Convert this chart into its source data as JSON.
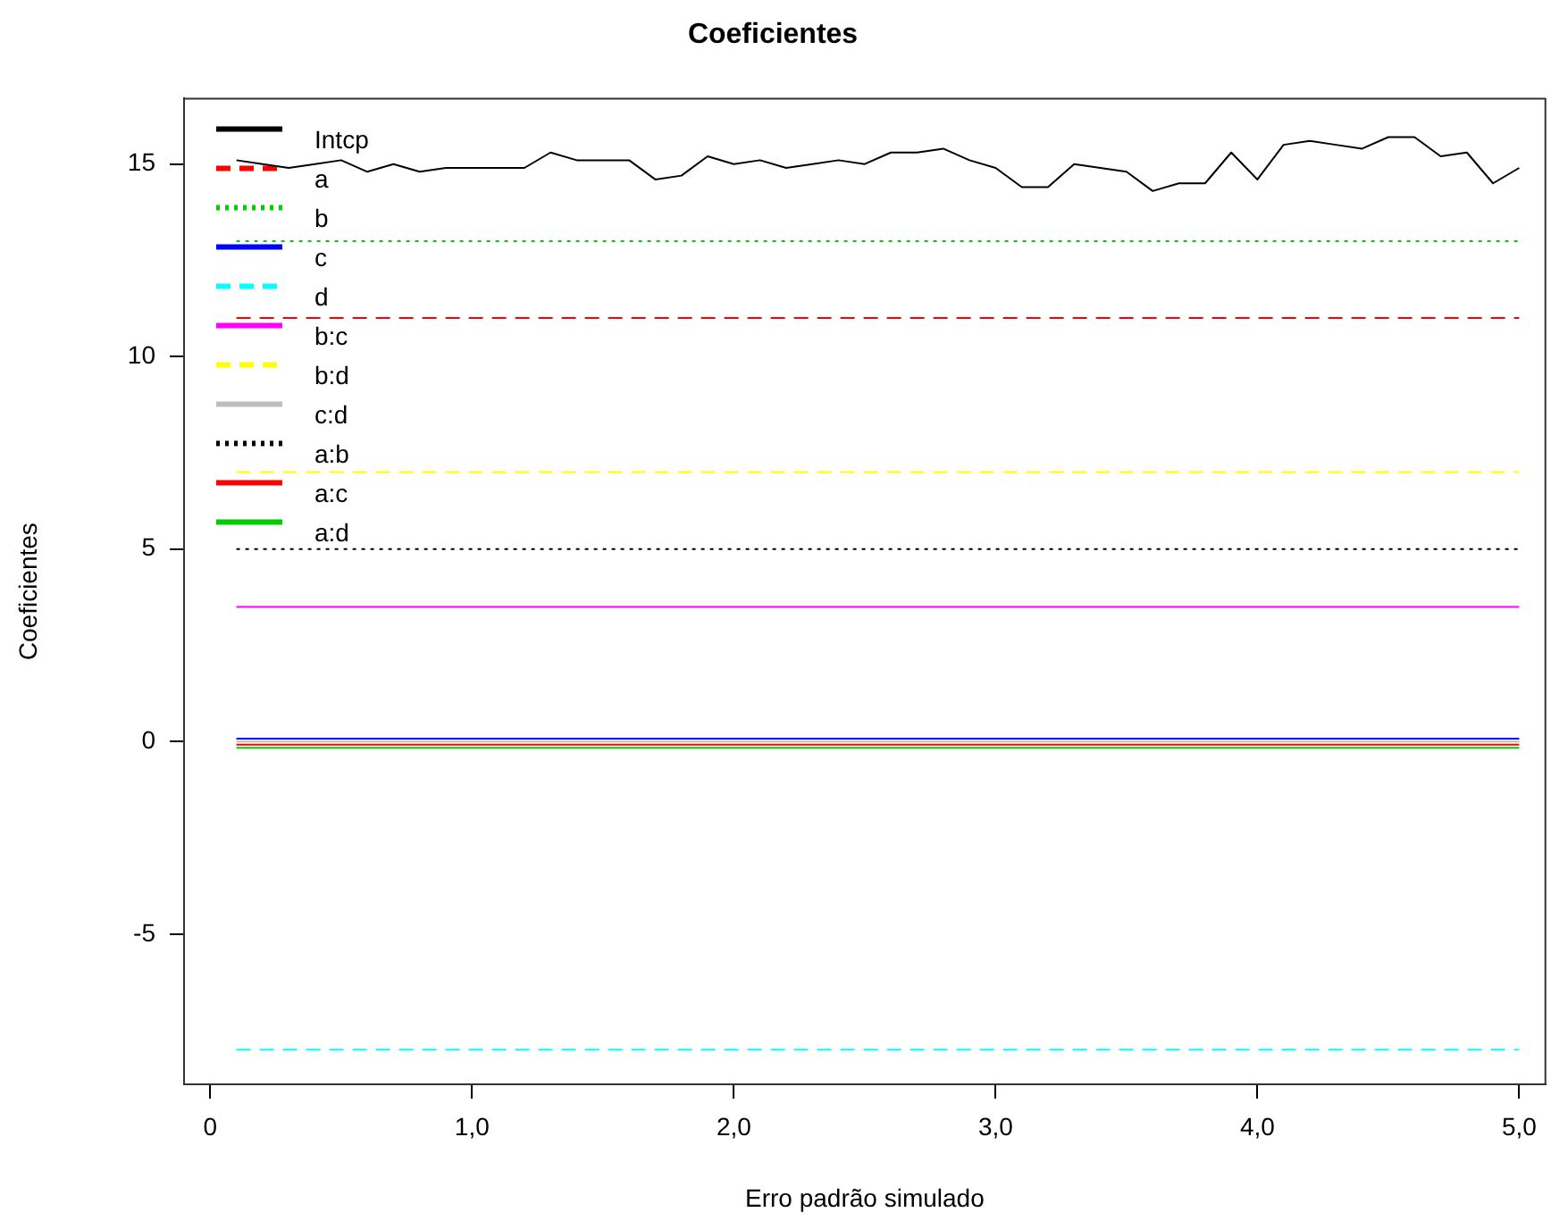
{
  "chart_data": {
    "type": "line",
    "title": "Coeficientes",
    "xlabel": "Erro padrão simulado",
    "ylabel": "Coeficientes",
    "x": [
      0.1,
      0.2,
      0.3,
      0.4,
      0.5,
      0.6,
      0.7,
      0.8,
      0.9,
      1.0,
      1.1,
      1.2,
      1.3,
      1.4,
      1.5,
      1.6,
      1.7,
      1.8,
      1.9,
      2.0,
      2.1,
      2.2,
      2.3,
      2.4,
      2.5,
      2.6,
      2.7,
      2.8,
      2.9,
      3.0,
      3.1,
      3.2,
      3.3,
      3.4,
      3.5,
      3.6,
      3.7,
      3.8,
      3.9,
      4.0,
      4.1,
      4.2,
      4.3,
      4.4,
      4.5,
      4.6,
      4.7,
      4.8,
      4.9,
      5.0
    ],
    "series": [
      {
        "name": "Intcp",
        "color": "#000000",
        "line_style": "solid",
        "values": [
          15.1,
          15.0,
          14.9,
          15.0,
          15.1,
          14.8,
          15.0,
          14.8,
          14.9,
          14.9,
          14.9,
          14.9,
          15.3,
          15.1,
          15.1,
          15.1,
          14.6,
          14.7,
          15.2,
          15.0,
          15.1,
          14.9,
          15.0,
          15.1,
          15.0,
          15.3,
          15.3,
          15.4,
          15.1,
          14.9,
          14.4,
          14.4,
          15.0,
          14.9,
          14.8,
          14.3,
          14.5,
          14.5,
          15.3,
          14.6,
          15.5,
          15.6,
          15.5,
          15.4,
          15.7,
          15.7,
          15.2,
          15.3,
          14.5,
          14.9
        ]
      },
      {
        "name": "a",
        "color": "#ff0000",
        "line_style": "dashed",
        "values": [
          11,
          11,
          11,
          11,
          11,
          11,
          11,
          11,
          11,
          11,
          11,
          11,
          11,
          11,
          11,
          11,
          11,
          11,
          11,
          11,
          11,
          11,
          11,
          11,
          11,
          11,
          11,
          11,
          11,
          11,
          11,
          11,
          11,
          11,
          11,
          11,
          11,
          11,
          11,
          11,
          11,
          11,
          11,
          11,
          11,
          11,
          11,
          11,
          11,
          11
        ]
      },
      {
        "name": "b",
        "color": "#00cd00",
        "line_style": "dotted",
        "values": [
          13,
          13,
          13,
          13,
          13,
          13,
          13,
          13,
          13,
          13,
          13,
          13,
          13,
          13,
          13,
          13,
          13,
          13,
          13,
          13,
          13,
          13,
          13,
          13,
          13,
          13,
          13,
          13,
          13,
          13,
          13,
          13,
          13,
          13,
          13,
          13,
          13,
          13,
          13,
          13,
          13,
          13,
          13,
          13,
          13,
          13,
          13,
          13,
          13,
          13
        ]
      },
      {
        "name": "c",
        "color": "#0000ff",
        "line_style": "solid",
        "values": [
          0.08,
          0.08,
          0.08,
          0.08,
          0.08,
          0.08,
          0.08,
          0.08,
          0.08,
          0.08,
          0.08,
          0.08,
          0.08,
          0.08,
          0.08,
          0.08,
          0.08,
          0.08,
          0.08,
          0.08,
          0.08,
          0.08,
          0.08,
          0.08,
          0.08,
          0.08,
          0.08,
          0.08,
          0.08,
          0.08,
          0.08,
          0.08,
          0.08,
          0.08,
          0.08,
          0.08,
          0.08,
          0.08,
          0.08,
          0.08,
          0.08,
          0.08,
          0.08,
          0.08,
          0.08,
          0.08,
          0.08,
          0.08,
          0.08,
          0.08
        ]
      },
      {
        "name": "d",
        "color": "#00ffff",
        "line_style": "dashed",
        "values": [
          -8,
          -8,
          -8,
          -8,
          -8,
          -8,
          -8,
          -8,
          -8,
          -8,
          -8,
          -8,
          -8,
          -8,
          -8,
          -8,
          -8,
          -8,
          -8,
          -8,
          -8,
          -8,
          -8,
          -8,
          -8,
          -8,
          -8,
          -8,
          -8,
          -8,
          -8,
          -8,
          -8,
          -8,
          -8,
          -8,
          -8,
          -8,
          -8,
          -8,
          -8,
          -8,
          -8,
          -8,
          -8,
          -8,
          -8,
          -8,
          -8,
          -8
        ]
      },
      {
        "name": "b:c",
        "color": "#ff00ff",
        "line_style": "solid",
        "values": [
          3.5,
          3.5,
          3.5,
          3.5,
          3.5,
          3.5,
          3.5,
          3.5,
          3.5,
          3.5,
          3.5,
          3.5,
          3.5,
          3.5,
          3.5,
          3.5,
          3.5,
          3.5,
          3.5,
          3.5,
          3.5,
          3.5,
          3.5,
          3.5,
          3.5,
          3.5,
          3.5,
          3.5,
          3.5,
          3.5,
          3.5,
          3.5,
          3.5,
          3.5,
          3.5,
          3.5,
          3.5,
          3.5,
          3.5,
          3.5,
          3.5,
          3.5,
          3.5,
          3.5,
          3.5,
          3.5,
          3.5,
          3.5,
          3.5,
          3.5
        ]
      },
      {
        "name": "b:d",
        "color": "#ffff00",
        "line_style": "dashed",
        "values": [
          7,
          7,
          7,
          7,
          7,
          7,
          7,
          7,
          7,
          7,
          7,
          7,
          7,
          7,
          7,
          7,
          7,
          7,
          7,
          7,
          7,
          7,
          7,
          7,
          7,
          7,
          7,
          7,
          7,
          7,
          7,
          7,
          7,
          7,
          7,
          7,
          7,
          7,
          7,
          7,
          7,
          7,
          7,
          7,
          7,
          7,
          7,
          7,
          7,
          7
        ]
      },
      {
        "name": "c:d",
        "color": "#bebebe",
        "line_style": "solid",
        "values": [
          0,
          0,
          0,
          0,
          0,
          0,
          0,
          0,
          0,
          0,
          0,
          0,
          0,
          0,
          0,
          0,
          0,
          0,
          0,
          0,
          0,
          0,
          0,
          0,
          0,
          0,
          0,
          0,
          0,
          0,
          0,
          0,
          0,
          0,
          0,
          0,
          0,
          0,
          0,
          0,
          0,
          0,
          0,
          0,
          0,
          0,
          0,
          0,
          0,
          0
        ]
      },
      {
        "name": "a:b",
        "color": "#000000",
        "line_style": "dotted",
        "values": [
          5,
          5,
          5,
          5,
          5,
          5,
          5,
          5,
          5,
          5,
          5,
          5,
          5,
          5,
          5,
          5,
          5,
          5,
          5,
          5,
          5,
          5,
          5,
          5,
          5,
          5,
          5,
          5,
          5,
          5,
          5,
          5,
          5,
          5,
          5,
          5,
          5,
          5,
          5,
          5,
          5,
          5,
          5,
          5,
          5,
          5,
          5,
          5,
          5,
          5
        ]
      },
      {
        "name": "a:c",
        "color": "#ff0000",
        "line_style": "solid",
        "values": [
          -0.08,
          -0.08,
          -0.08,
          -0.08,
          -0.08,
          -0.08,
          -0.08,
          -0.08,
          -0.08,
          -0.08,
          -0.08,
          -0.08,
          -0.08,
          -0.08,
          -0.08,
          -0.08,
          -0.08,
          -0.08,
          -0.08,
          -0.08,
          -0.08,
          -0.08,
          -0.08,
          -0.08,
          -0.08,
          -0.08,
          -0.08,
          -0.08,
          -0.08,
          -0.08,
          -0.08,
          -0.08,
          -0.08,
          -0.08,
          -0.08,
          -0.08,
          -0.08,
          -0.08,
          -0.08,
          -0.08,
          -0.08,
          -0.08,
          -0.08,
          -0.08,
          -0.08,
          -0.08,
          -0.08,
          -0.08,
          -0.08,
          -0.08
        ]
      },
      {
        "name": "a:d",
        "color": "#00cd00",
        "line_style": "solid",
        "values": [
          -0.16,
          -0.16,
          -0.16,
          -0.16,
          -0.16,
          -0.16,
          -0.16,
          -0.16,
          -0.16,
          -0.16,
          -0.16,
          -0.16,
          -0.16,
          -0.16,
          -0.16,
          -0.16,
          -0.16,
          -0.16,
          -0.16,
          -0.16,
          -0.16,
          -0.16,
          -0.16,
          -0.16,
          -0.16,
          -0.16,
          -0.16,
          -0.16,
          -0.16,
          -0.16,
          -0.16,
          -0.16,
          -0.16,
          -0.16,
          -0.16,
          -0.16,
          -0.16,
          -0.16,
          -0.16,
          -0.16,
          -0.16,
          -0.16,
          -0.16,
          -0.16,
          -0.16,
          -0.16,
          -0.16,
          -0.16,
          -0.16,
          -0.16
        ]
      }
    ],
    "xlim": [
      -0.1,
      5.1
    ],
    "xticks": [
      0,
      {
        "value": 1,
        "label": "1,0"
      },
      {
        "value": 2,
        "label": "2,0"
      },
      {
        "value": 3,
        "label": "3,0"
      },
      {
        "value": 4,
        "label": "4,0"
      },
      {
        "value": 5,
        "label": "5,0"
      }
    ],
    "ylim": [
      -8.9,
      16.7
    ],
    "yticks": [
      -5,
      0,
      5,
      10,
      15
    ],
    "grid": false,
    "legend": "top left",
    "marker": "none"
  }
}
